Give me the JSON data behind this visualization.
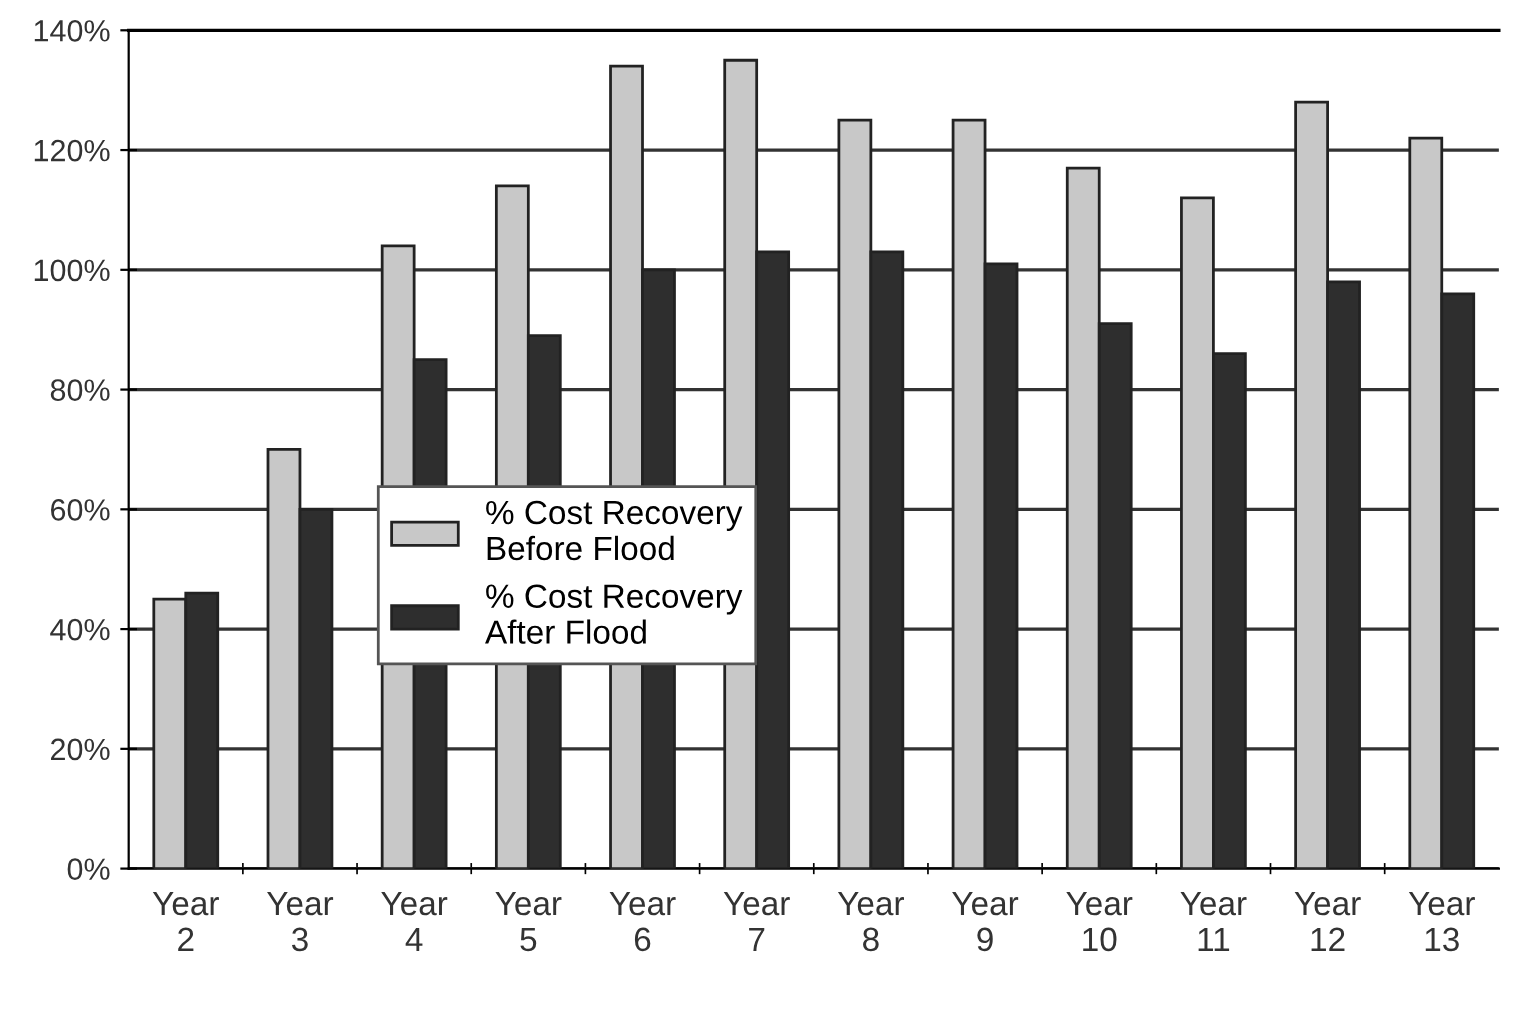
{
  "chart_data": {
    "type": "bar",
    "categories": [
      "Year\n2",
      "Year\n3",
      "Year\n4",
      "Year\n5",
      "Year\n6",
      "Year\n7",
      "Year\n8",
      "Year\n9",
      "Year\n10",
      "Year\n11",
      "Year\n12",
      "Year\n13"
    ],
    "series": [
      {
        "name": "% Cost Recovery\nBefore Flood",
        "color": "#c8c8c8",
        "values": [
          45,
          70,
          104,
          114,
          134,
          135,
          125,
          125,
          117,
          112,
          128,
          122
        ]
      },
      {
        "name": "% Cost Recovery\nAfter Flood",
        "color": "#2e2e2e",
        "values": [
          46,
          60,
          85,
          89,
          100,
          103,
          103,
          101,
          91,
          86,
          98,
          96
        ]
      }
    ],
    "ylim": [
      0,
      140
    ],
    "yticks": [
      {
        "value": 0,
        "label": "0%"
      },
      {
        "value": 20,
        "label": "20%"
      },
      {
        "value": 40,
        "label": "40%"
      },
      {
        "value": 60,
        "label": "60%"
      },
      {
        "value": 80,
        "label": "80%"
      },
      {
        "value": 100,
        "label": "100%"
      },
      {
        "value": 120,
        "label": "120%"
      },
      {
        "value": 140,
        "label": "140%"
      }
    ],
    "grid": "y",
    "legend": "center left"
  }
}
